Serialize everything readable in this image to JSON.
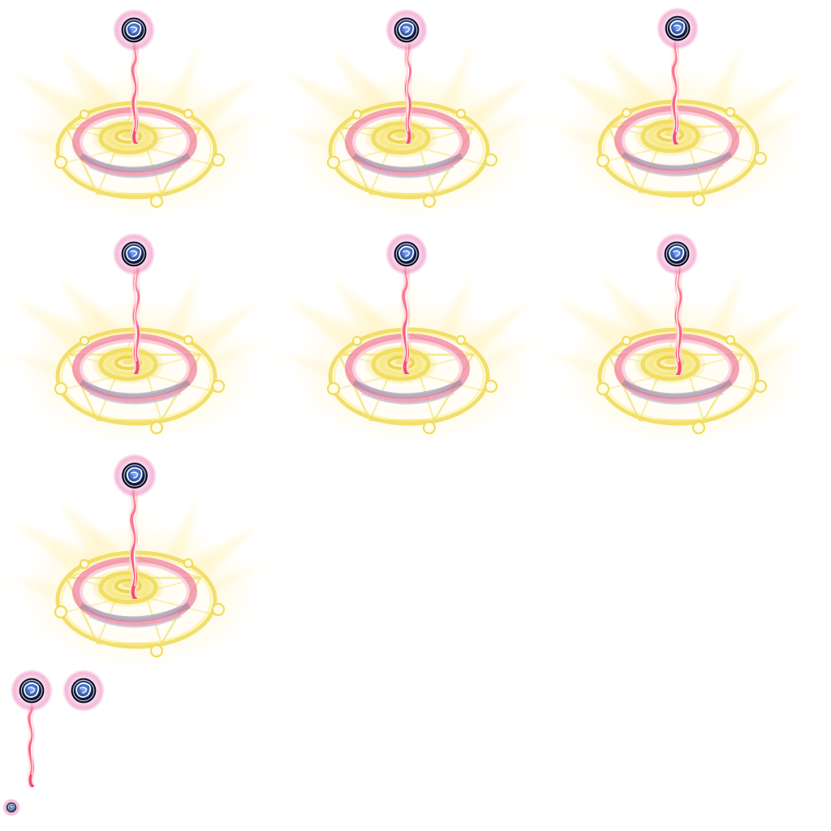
{
  "sprite_sheet": {
    "frame_count": 7,
    "colors": {
      "background": "#ffffff",
      "circle_gold": "#f3e36c",
      "glow_gold": "#fff2b8",
      "ring_pink": "#f07a9b",
      "ring_gray": "#8c8aa3",
      "beam_red": "#f04d63",
      "orb_dark": "#11122b",
      "orb_blue": "#3f6ac4",
      "aura_pink": "#eb78b2"
    },
    "frames": [
      {
        "ring_variant": "medium",
        "beam_variant": "a"
      },
      {
        "ring_variant": "medium",
        "beam_variant": "b"
      },
      {
        "ring_variant": "strong",
        "beam_variant": "a"
      },
      {
        "ring_variant": "soft",
        "beam_variant": "b"
      },
      {
        "ring_variant": "soft",
        "beam_variant": "a"
      },
      {
        "ring_variant": "medium",
        "beam_variant": "b"
      },
      {
        "ring_variant": "soft",
        "beam_variant": "a"
      }
    ],
    "loose_parts": [
      {
        "name": "orb-with-beam"
      },
      {
        "name": "orb"
      },
      {
        "name": "small-orb"
      }
    ]
  }
}
